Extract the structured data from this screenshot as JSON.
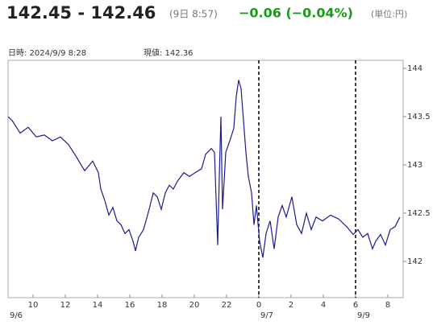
{
  "chart_data": {
    "type": "line",
    "title": "142.45 - 142.46",
    "subtitle": "(9日 8:57)",
    "change": "−0.06 (−0.04%)",
    "unit": "(単位:円)",
    "datetime_label": "日時: 2024/9/9  8:28",
    "current_label": "現値: 142.36",
    "x": [
      8.45,
      8.7,
      9.2,
      9.7,
      10.2,
      10.7,
      11.2,
      11.7,
      12.2,
      12.7,
      13.2,
      13.7,
      14.05,
      14.2,
      14.45,
      14.7,
      14.95,
      15.2,
      15.45,
      15.7,
      15.95,
      16.2,
      16.35,
      16.55,
      16.85,
      17.2,
      17.45,
      17.7,
      17.95,
      18.2,
      18.45,
      18.7,
      18.95,
      19.35,
      19.7,
      20.05,
      20.45,
      20.7,
      21.05,
      21.25,
      21.45,
      21.55,
      21.65,
      21.75,
      21.95,
      22.2,
      22.45,
      22.6,
      22.75,
      22.9,
      23.05,
      23.2,
      23.35,
      23.55,
      23.7,
      23.85,
      24.05,
      24.25,
      24.45,
      24.7,
      24.95,
      25.2,
      25.45,
      25.7,
      26.05,
      26.35,
      26.65,
      26.95,
      27.25,
      27.55,
      27.95,
      28.45,
      28.95,
      29.45,
      29.85,
      30.15,
      30.45,
      30.75,
      31.05,
      31.25,
      31.55,
      31.85,
      32.15,
      32.45,
      32.75
    ],
    "series": [
      {
        "color": "#1c1c8f",
        "values": [
          143.5,
          143.46,
          143.33,
          143.39,
          143.29,
          143.31,
          143.25,
          143.29,
          143.21,
          143.08,
          142.94,
          143.04,
          142.92,
          142.75,
          142.63,
          142.48,
          142.56,
          142.42,
          142.38,
          142.29,
          142.33,
          142.21,
          142.11,
          142.25,
          142.33,
          142.54,
          142.71,
          142.67,
          142.54,
          142.71,
          142.79,
          142.75,
          142.83,
          142.92,
          142.88,
          142.92,
          142.96,
          143.11,
          143.17,
          143.13,
          142.17,
          142.88,
          143.5,
          142.54,
          143.13,
          143.25,
          143.38,
          143.71,
          143.88,
          143.79,
          143.46,
          143.13,
          142.88,
          142.71,
          142.38,
          142.58,
          142.21,
          142.04,
          142.29,
          142.42,
          142.13,
          142.46,
          142.58,
          142.46,
          142.67,
          142.38,
          142.29,
          142.5,
          142.33,
          142.46,
          142.42,
          142.48,
          142.44,
          142.36,
          142.28,
          142.33,
          142.25,
          142.29,
          142.13,
          142.21,
          142.28,
          142.17,
          142.33,
          142.36,
          142.46
        ]
      }
    ],
    "xlim": [
      8.45,
      32.95
    ],
    "xticks": [
      10,
      12,
      14,
      16,
      18,
      20,
      22,
      {
        "value": 24,
        "label": "0"
      },
      {
        "value": 26,
        "label": "2"
      },
      {
        "value": 28,
        "label": "4"
      },
      {
        "value": 30,
        "label": "6"
      },
      {
        "value": 32,
        "label": "8"
      }
    ],
    "date_labels": [
      {
        "value": 8.45,
        "label": "9/6"
      },
      {
        "value": 24,
        "label": "9/7"
      },
      {
        "value": 30,
        "label": "9/9"
      }
    ],
    "separators": [
      24,
      30
    ],
    "ylim": [
      141.625,
      144.083
    ],
    "yticks": [
      142,
      142.5,
      143,
      143.5,
      144
    ]
  }
}
